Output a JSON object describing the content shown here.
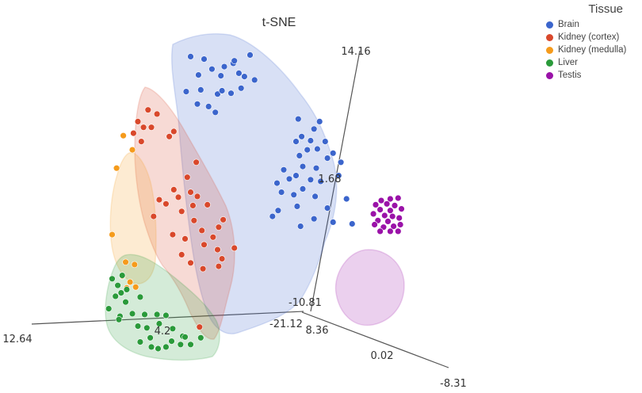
{
  "chart_data": {
    "type": "scatter",
    "subtype": "3d-scatter-with-cluster-hulls",
    "title": "t-SNE",
    "legend": {
      "title": "Tissue",
      "placement": "top-right",
      "entries": [
        {
          "name": "Brain",
          "color": "#3b65cc"
        },
        {
          "name": "Kidney (cortex)",
          "color": "#d9482b"
        },
        {
          "name": "Kidney (medulla)",
          "color": "#f59b1c"
        },
        {
          "name": "Liver",
          "color": "#2a9a3a"
        },
        {
          "name": "Testis",
          "color": "#9a12a8"
        }
      ]
    },
    "axes": {
      "tick_labels": [
        "14.16",
        "1.68",
        "-10.81",
        "-21.12",
        "8.36",
        "0.02",
        "-8.31",
        "12.64",
        "4.2"
      ]
    },
    "series": [
      {
        "name": "Brain",
        "color": "#3b65cc",
        "points": [
          [
            -7.4,
            13.1
          ],
          [
            -6.2,
            12.8
          ],
          [
            -3.6,
            12.3
          ],
          [
            -2.1,
            13.3
          ],
          [
            -5.5,
            11.6
          ],
          [
            -4.4,
            11.9
          ],
          [
            -3.5,
            12.6
          ],
          [
            -1.7,
            10.3
          ],
          [
            -3.1,
            11.1
          ],
          [
            -6.7,
            10.9
          ],
          [
            -2.6,
            10.7
          ],
          [
            -4.7,
            10.8
          ],
          [
            -2.9,
            9.3
          ],
          [
            -6.8,
            7.4
          ],
          [
            -7.8,
            8.9
          ],
          [
            -5.0,
            8.6
          ],
          [
            -5.8,
            7.1
          ],
          [
            -4.6,
            9.0
          ],
          [
            -6.5,
            9.1
          ],
          [
            -3.8,
            8.7
          ],
          [
            -5.2,
            6.4
          ],
          [
            2.2,
            5.6
          ],
          [
            4.1,
            5.3
          ],
          [
            3.6,
            4.4
          ],
          [
            2.5,
            3.5
          ],
          [
            2.0,
            2.9
          ],
          [
            3.3,
            3.0
          ],
          [
            4.6,
            2.9
          ],
          [
            3.9,
            2.0
          ],
          [
            3.0,
            1.9
          ],
          [
            5.3,
            1.5
          ],
          [
            2.3,
            1.2
          ],
          [
            4.8,
            0.9
          ],
          [
            6.0,
            0.4
          ],
          [
            2.6,
            -0.1
          ],
          [
            0.9,
            -0.5
          ],
          [
            3.8,
            -0.3
          ],
          [
            2.0,
            -1.2
          ],
          [
            5.8,
            -1.2
          ],
          [
            1.4,
            -1.6
          ],
          [
            3.3,
            -1.7
          ],
          [
            4.2,
            -1.9
          ],
          [
            0.3,
            -2.1
          ],
          [
            2.6,
            -2.8
          ],
          [
            0.7,
            -3.2
          ],
          [
            3.7,
            -3.7
          ],
          [
            6.5,
            -4.0
          ],
          [
            1.8,
            -3.5
          ],
          [
            2.1,
            -4.9
          ],
          [
            4.8,
            -5.1
          ],
          [
            0.4,
            -5.4
          ],
          [
            -0.1,
            -6.1
          ],
          [
            3.6,
            -6.4
          ],
          [
            5.3,
            -6.8
          ],
          [
            2.4,
            -7.3
          ],
          [
            7.0,
            -7.0
          ]
        ]
      },
      {
        "name": "Kidney (cortex)",
        "color": "#d9482b",
        "points": [
          [
            -11.2,
            6.7
          ],
          [
            -10.4,
            6.2
          ],
          [
            -12.1,
            5.3
          ],
          [
            -11.6,
            4.6
          ],
          [
            -10.9,
            4.6
          ],
          [
            -8.9,
            4.1
          ],
          [
            -12.5,
            3.9
          ],
          [
            -9.3,
            3.5
          ],
          [
            -11.8,
            2.9
          ],
          [
            -6.9,
            0.4
          ],
          [
            -7.7,
            -1.4
          ],
          [
            -8.9,
            -2.9
          ],
          [
            -10.2,
            -4.1
          ],
          [
            -7.4,
            -3.2
          ],
          [
            -6.8,
            -3.7
          ],
          [
            -8.5,
            -3.8
          ],
          [
            -9.6,
            -4.6
          ],
          [
            -7.2,
            -4.8
          ],
          [
            -5.9,
            -4.7
          ],
          [
            -8.2,
            -5.5
          ],
          [
            -10.7,
            -6.1
          ],
          [
            -7.1,
            -6.6
          ],
          [
            -4.5,
            -6.5
          ],
          [
            -4.9,
            -7.4
          ],
          [
            -6.4,
            -7.8
          ],
          [
            -9.0,
            -8.3
          ],
          [
            -5.4,
            -8.6
          ],
          [
            -7.9,
            -8.8
          ],
          [
            -6.2,
            -9.5
          ],
          [
            -5.0,
            -10.1
          ],
          [
            -8.2,
            -10.7
          ],
          [
            -3.5,
            -9.9
          ],
          [
            -4.6,
            -11.2
          ],
          [
            -7.4,
            -11.7
          ],
          [
            -4.9,
            -12.1
          ],
          [
            -6.3,
            -12.4
          ],
          [
            -6.6,
            -19.4
          ]
        ]
      },
      {
        "name": "Kidney (medulla)",
        "color": "#f59b1c",
        "points": [
          [
            -13.4,
            3.6
          ],
          [
            -12.6,
            1.9
          ],
          [
            -14.0,
            -0.3
          ],
          [
            -14.4,
            -8.3
          ],
          [
            -13.2,
            -11.6
          ],
          [
            -12.4,
            -11.9
          ],
          [
            -13.5,
            -13.3
          ],
          [
            -12.8,
            -14.0
          ],
          [
            -13.1,
            -14.7
          ],
          [
            -12.3,
            -14.6
          ]
        ]
      },
      {
        "name": "Liver",
        "color": "#2a9a3a",
        "points": [
          [
            -13.5,
            -13.2
          ],
          [
            -14.4,
            -13.6
          ],
          [
            -13.9,
            -14.4
          ],
          [
            -13.1,
            -14.9
          ],
          [
            -13.6,
            -15.3
          ],
          [
            -14.1,
            -15.7
          ],
          [
            -11.9,
            -15.8
          ],
          [
            -13.2,
            -16.4
          ],
          [
            -14.7,
            -17.2
          ],
          [
            -13.7,
            -18.1
          ],
          [
            -12.6,
            -17.8
          ],
          [
            -11.5,
            -17.9
          ],
          [
            -10.4,
            -17.9
          ],
          [
            -9.6,
            -18.0
          ],
          [
            -13.8,
            -18.5
          ],
          [
            -12.1,
            -19.3
          ],
          [
            -11.3,
            -19.5
          ],
          [
            -10.2,
            -19.0
          ],
          [
            -9.0,
            -19.6
          ],
          [
            -8.1,
            -20.5
          ],
          [
            -11.0,
            -20.7
          ],
          [
            -9.1,
            -21.1
          ],
          [
            -8.3,
            -21.5
          ],
          [
            -7.4,
            -21.5
          ],
          [
            -6.5,
            -20.7
          ],
          [
            -10.9,
            -21.8
          ],
          [
            -10.3,
            -22.0
          ],
          [
            -9.6,
            -21.8
          ],
          [
            -11.9,
            -21.2
          ],
          [
            -7.9,
            -20.6
          ]
        ]
      },
      {
        "name": "Testis",
        "color": "#9a12a8",
        "points": [
          [
            9.6,
            -4.2
          ],
          [
            10.4,
            -4.0
          ],
          [
            11.1,
            -3.9
          ],
          [
            9.1,
            -4.7
          ],
          [
            10.1,
            -4.6
          ],
          [
            10.8,
            -4.8
          ],
          [
            9.5,
            -5.3
          ],
          [
            10.4,
            -5.4
          ],
          [
            11.4,
            -5.2
          ],
          [
            8.9,
            -5.8
          ],
          [
            9.9,
            -6.0
          ],
          [
            10.6,
            -6.1
          ],
          [
            11.2,
            -6.3
          ],
          [
            9.3,
            -6.6
          ],
          [
            10.2,
            -6.7
          ],
          [
            9.0,
            -7.1
          ],
          [
            9.8,
            -7.4
          ],
          [
            10.7,
            -7.3
          ],
          [
            11.3,
            -7.1
          ],
          [
            9.5,
            -7.9
          ],
          [
            10.4,
            -7.9
          ],
          [
            11.1,
            -7.9
          ]
        ]
      }
    ]
  }
}
